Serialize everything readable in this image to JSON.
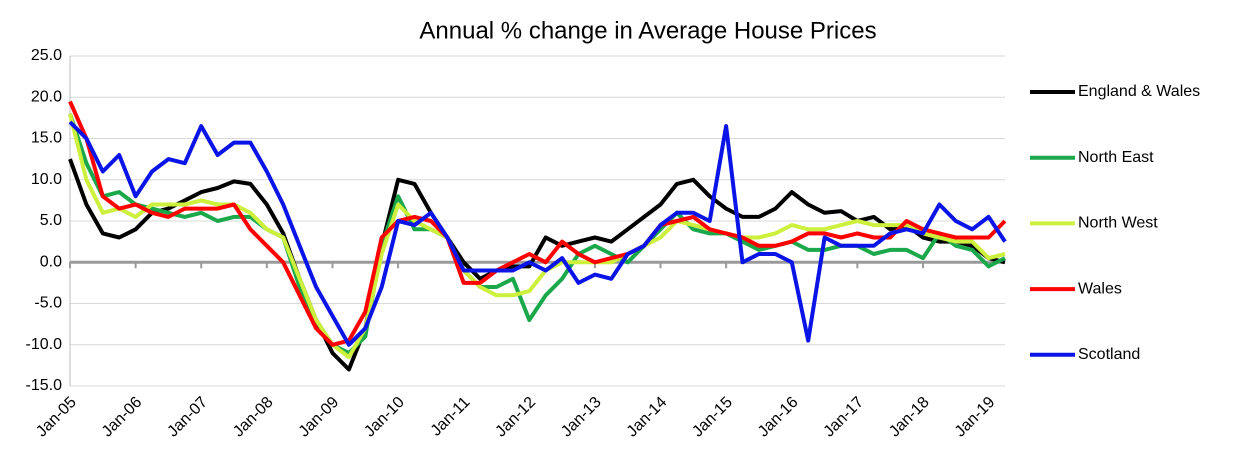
{
  "chart_data": {
    "type": "line",
    "title": "Annual % change in Average House Prices",
    "categories": [
      "Jan-05",
      null,
      null,
      null,
      "Jan-06",
      null,
      null,
      null,
      "Jan-07",
      null,
      null,
      null,
      "Jan-08",
      null,
      null,
      null,
      "Jan-09",
      null,
      null,
      null,
      "Jan-10",
      null,
      null,
      null,
      "Jan-11",
      null,
      null,
      null,
      "Jan-12",
      null,
      null,
      null,
      "Jan-13",
      null,
      null,
      null,
      "Jan-14",
      null,
      null,
      null,
      "Jan-15",
      null,
      null,
      null,
      "Jan-16",
      null,
      null,
      null,
      "Jan-17",
      null,
      null,
      null,
      "Jan-18",
      null,
      null,
      null,
      "Jan-19",
      null
    ],
    "ylim": [
      -15,
      25
    ],
    "yticks": [
      {
        "value": -15,
        "label": "-15.0"
      },
      {
        "value": -10,
        "label": "-10.0"
      },
      {
        "value": -5,
        "label": "-5.0"
      },
      {
        "value": 0,
        "label": "0.0"
      },
      {
        "value": 5,
        "label": "5.0"
      },
      {
        "value": 10,
        "label": "10.0"
      },
      {
        "value": 15,
        "label": "15.0"
      },
      {
        "value": 20,
        "label": "20.0"
      },
      {
        "value": 25,
        "label": "25.0"
      }
    ],
    "grid": true,
    "legend": "right",
    "series": [
      {
        "name": "England & Wales",
        "color": "#000000",
        "values": [
          12.5,
          7,
          3.5,
          3,
          4,
          6,
          6.5,
          7.5,
          8.5,
          9,
          9.8,
          9.5,
          7,
          3.5,
          -2,
          -7,
          -11,
          -13,
          -8,
          2,
          10,
          9.5,
          6,
          3,
          0,
          -2,
          -1,
          -0.5,
          -0.5,
          3,
          2,
          2.5,
          3,
          2.5,
          4,
          5.5,
          7,
          9.5,
          10,
          8,
          6.5,
          5.5,
          5.5,
          6.5,
          8.5,
          7,
          6,
          6.2,
          5,
          5.5,
          4,
          4.5,
          3,
          2.5,
          2.5,
          2,
          0.5,
          0
        ]
      },
      {
        "name": "North East",
        "color": "#1aa84a",
        "values": [
          18,
          12,
          8,
          8.5,
          7,
          6.5,
          6,
          5.5,
          6,
          5,
          5.5,
          5.5,
          4,
          3,
          -3,
          -7,
          -10,
          -11,
          -9,
          2,
          8,
          4,
          4,
          3,
          -1,
          -3,
          -3,
          -2,
          -7,
          -4,
          -2,
          1,
          2,
          1,
          0,
          2,
          4,
          6,
          4,
          3.5,
          3.5,
          2.5,
          1.5,
          2,
          2.5,
          1.5,
          1.5,
          2,
          2,
          1,
          1.5,
          1.5,
          0.5,
          3.5,
          2,
          1.5,
          -0.5,
          0.5
        ]
      },
      {
        "name": "North West",
        "color": "#ccf03c",
        "values": [
          18,
          10,
          6,
          6.5,
          5.5,
          7,
          7,
          7,
          7.5,
          7,
          7,
          6,
          4,
          3,
          -2,
          -7,
          -10,
          -11.5,
          -8,
          1,
          7,
          5,
          4,
          3,
          -1,
          -3,
          -4,
          -4,
          -3.5,
          -1,
          0,
          0,
          0,
          0,
          1,
          2,
          3,
          5,
          4.5,
          4,
          3.5,
          3,
          3,
          3.5,
          4.5,
          4,
          4,
          4.5,
          5,
          4.5,
          4.5,
          4.5,
          3.5,
          3,
          2.5,
          2.5,
          0.5,
          1
        ]
      },
      {
        "name": "Wales",
        "color": "#ff0000",
        "values": [
          19.5,
          15,
          8,
          6.5,
          7,
          6,
          5.5,
          6.5,
          6.5,
          6.5,
          7,
          4,
          2,
          0,
          -4,
          -8,
          -10,
          -9.5,
          -6,
          3,
          5,
          5.5,
          5,
          3,
          -2.5,
          -2.5,
          -1,
          0,
          1,
          0,
          2.5,
          1,
          0,
          0.5,
          1,
          2,
          4.5,
          5,
          5.5,
          4,
          3.5,
          3,
          2,
          2,
          2.5,
          3.5,
          3.5,
          3,
          3.5,
          3,
          3,
          5,
          4,
          3.5,
          3,
          3,
          3,
          5
        ]
      },
      {
        "name": "Scotland",
        "color": "#0a14e6",
        "values": [
          17,
          15,
          11,
          13,
          8,
          11,
          12.5,
          12,
          16.5,
          13,
          14.5,
          14.5,
          11,
          7,
          2,
          -3,
          -6.5,
          -10,
          -8,
          -3,
          5,
          4.5,
          6,
          3,
          -1,
          -1,
          -1,
          -1,
          0,
          -1,
          0.5,
          -2.5,
          -1.5,
          -2,
          1,
          2,
          4.5,
          6,
          6,
          5,
          16.5,
          0,
          1,
          1,
          0,
          -9.5,
          3,
          2,
          2,
          2,
          3.5,
          4,
          3.5,
          7,
          5,
          4,
          5.5,
          2.5
        ]
      }
    ]
  }
}
